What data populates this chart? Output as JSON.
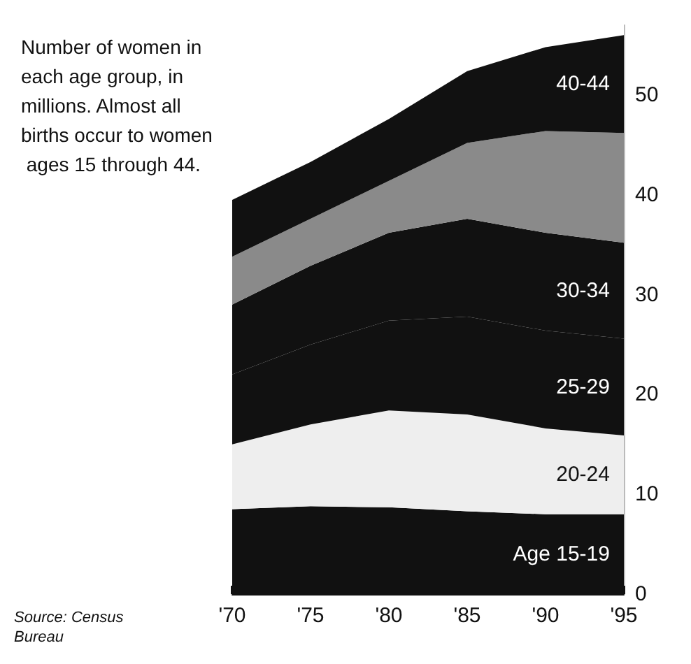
{
  "chart_data": {
    "type": "area",
    "stacked": true,
    "title": "Number of women in each age group, in millions. Almost all births occur to women ages 15 through 44.",
    "annotations": [
      "Source: Census Bureau"
    ],
    "x": [
      1970,
      1975,
      1980,
      1985,
      1990,
      1995
    ],
    "series": [
      {
        "name": "Age 15-19",
        "color": "#111111",
        "values": [
          8.5,
          8.8,
          8.7,
          8.3,
          8.0,
          8.0
        ]
      },
      {
        "name": "20-24",
        "color": "#eeeeee",
        "values": [
          6.5,
          8.2,
          9.7,
          9.7,
          8.6,
          7.9
        ]
      },
      {
        "name": "25-29",
        "color": "#111111",
        "values": [
          7.0,
          8.0,
          9.0,
          9.8,
          9.8,
          9.7
        ]
      },
      {
        "name": "30-34",
        "color": "#111111",
        "values": [
          7.0,
          7.9,
          8.8,
          9.8,
          9.8,
          9.6
        ]
      },
      {
        "color": "#8a8a8a",
        "values": [
          4.8,
          4.7,
          5.2,
          7.6,
          10.2,
          11.0
        ]
      },
      {
        "name": "40-44",
        "color": "#111111",
        "values": [
          5.7,
          5.7,
          6.2,
          7.2,
          8.4,
          9.8
        ]
      }
    ],
    "xlim": [
      1970,
      1995
    ],
    "xticks": [
      {
        "value": 1970,
        "label": "'70"
      },
      {
        "value": 1971,
        "label": null
      },
      {
        "value": 1972,
        "label": null
      },
      {
        "value": 1973,
        "label": null
      },
      {
        "value": 1974,
        "label": null
      },
      {
        "value": 1975,
        "label": "'75"
      },
      {
        "value": 1976,
        "label": null
      },
      {
        "value": 1977,
        "label": null
      },
      {
        "value": 1978,
        "label": null
      },
      {
        "value": 1979,
        "label": null
      },
      {
        "value": 1980,
        "label": "'80"
      },
      {
        "value": 1981,
        "label": null
      },
      {
        "value": 1982,
        "label": null
      },
      {
        "value": 1983,
        "label": null
      },
      {
        "value": 1984,
        "label": null
      },
      {
        "value": 1985,
        "label": "'85"
      },
      {
        "value": 1986,
        "label": null
      },
      {
        "value": 1987,
        "label": null
      },
      {
        "value": 1988,
        "label": null
      },
      {
        "value": 1989,
        "label": null
      },
      {
        "value": 1990,
        "label": "'90"
      },
      {
        "value": 1991,
        "label": null
      },
      {
        "value": 1992,
        "label": null
      },
      {
        "value": 1993,
        "label": null
      },
      {
        "value": 1994,
        "label": null
      },
      {
        "value": 1995,
        "label": "'95"
      }
    ],
    "ylim": [
      0,
      57
    ],
    "yticks": [
      0,
      10,
      20,
      30,
      40,
      50
    ]
  }
}
